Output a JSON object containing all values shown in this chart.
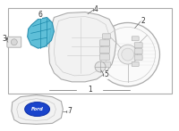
{
  "background_color": "#ffffff",
  "highlight_color": "#4db8d4",
  "highlight_edge": "#2288aa",
  "part_fill": "#f5f5f5",
  "part_edge": "#999999",
  "label_color": "#333333",
  "leader_color": "#666666",
  "border_edge": "#aaaaaa",
  "label_fontsize": 5.5,
  "figsize": [
    2.0,
    1.47
  ],
  "dpi": 100
}
